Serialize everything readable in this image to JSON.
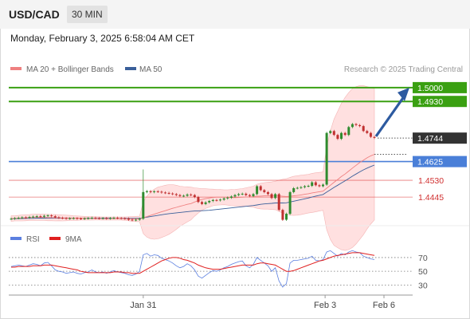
{
  "header": {
    "pair": "USD/CAD",
    "timeframe": "30 MIN"
  },
  "datetime": "Monday, February 3, 2025 6:58:04 AM CET",
  "legend": {
    "ma20": {
      "label": "MA 20 + Bollinger Bands",
      "color": "#ef8080"
    },
    "ma50": {
      "label": "MA 50",
      "color": "#3a5f9a"
    },
    "credit": "Research © 2025 Trading Central"
  },
  "osc_legend": {
    "rsi": {
      "label": "RSI",
      "color": "#5b7fe0"
    },
    "ma9": {
      "label": "9MA",
      "color": "#e02020"
    }
  },
  "chart_data": [
    {
      "type": "candlestick",
      "x_ticks": [
        "Jan 31",
        "Feb 3",
        "Feb 6"
      ],
      "ylim": [
        1.432,
        1.504
      ],
      "price_levels": [
        {
          "label": "1.5000",
          "value": 1.5,
          "kind": "target",
          "color": "#3aa012"
        },
        {
          "label": "1.4930",
          "value": 1.493,
          "kind": "resistance",
          "color": "#3aa012"
        },
        {
          "label": "1.4744",
          "value": 1.4744,
          "kind": "last",
          "color": "#333333"
        },
        {
          "label": "1.4625",
          "value": 1.4625,
          "kind": "pivot",
          "color": "#4a7fd8"
        },
        {
          "label": "1.4530",
          "value": 1.453,
          "kind": "support",
          "color": "#e04040"
        },
        {
          "label": "1.4445",
          "value": 1.4445,
          "kind": "support",
          "color": "#e04040"
        }
      ],
      "closes": [
        1.4335,
        1.4338,
        1.434,
        1.4342,
        1.434,
        1.4344,
        1.4346,
        1.4348,
        1.4345,
        1.435,
        1.4352,
        1.4348,
        1.4342,
        1.434,
        1.4338,
        1.4336,
        1.4337,
        1.4338,
        1.4336,
        1.4335,
        1.4337,
        1.4338,
        1.434,
        1.4338,
        1.4337,
        1.4338,
        1.4336,
        1.4338,
        1.434,
        1.4338,
        1.4337,
        1.4336,
        1.433,
        1.4328,
        1.433,
        1.4335,
        1.447,
        1.4475,
        1.447,
        1.4474,
        1.4472,
        1.4468,
        1.4466,
        1.4463,
        1.446,
        1.4455,
        1.445,
        1.4452,
        1.4458,
        1.4455,
        1.4445,
        1.442,
        1.441,
        1.4418,
        1.4425,
        1.443,
        1.4428,
        1.4432,
        1.4438,
        1.4442,
        1.4448,
        1.4455,
        1.446,
        1.4462,
        1.4455,
        1.445,
        1.446,
        1.45,
        1.448,
        1.447,
        1.446,
        1.444,
        1.446,
        1.438,
        1.433,
        1.436,
        1.447,
        1.449,
        1.4492,
        1.4495,
        1.45,
        1.4502,
        1.452,
        1.4505,
        1.45,
        1.4508,
        1.477,
        1.478,
        1.476,
        1.474,
        1.477,
        1.476,
        1.48,
        1.4815,
        1.481,
        1.4805,
        1.478,
        1.477,
        1.475,
        1.4745
      ],
      "ma20": [
        1.4336,
        1.4337,
        1.4338,
        1.4339,
        1.434,
        1.4341,
        1.4342,
        1.4342,
        1.4342,
        1.4342,
        1.4341,
        1.4341,
        1.434,
        1.434,
        1.4339,
        1.4339,
        1.4339,
        1.4338,
        1.4338,
        1.4338,
        1.4338,
        1.4337,
        1.4337,
        1.4337,
        1.4337,
        1.4336,
        1.4336,
        1.4336,
        1.4336,
        1.4336,
        1.4336,
        1.4335,
        1.4335,
        1.4334,
        1.4334,
        1.4334,
        1.434,
        1.4346,
        1.4352,
        1.4358,
        1.4364,
        1.437,
        1.4376,
        1.4382,
        1.4388,
        1.4393,
        1.4398,
        1.4403,
        1.4408,
        1.4412,
        1.442,
        1.4427,
        1.4433,
        1.4437,
        1.444,
        1.4443,
        1.4444,
        1.4444,
        1.4444,
        1.4443,
        1.4442,
        1.4442,
        1.4443,
        1.4444,
        1.4445,
        1.4446,
        1.4447,
        1.4449,
        1.445,
        1.4451,
        1.4452,
        1.4452,
        1.4453,
        1.4451,
        1.4449,
        1.4448,
        1.4449,
        1.4451,
        1.4453,
        1.4456,
        1.4459,
        1.4462,
        1.4466,
        1.4469,
        1.4472,
        1.4475,
        1.449,
        1.4505,
        1.452,
        1.4534,
        1.4549,
        1.4562,
        1.4577,
        1.4592,
        1.4606,
        1.462,
        1.4632,
        1.4644,
        1.4654,
        1.4662
      ],
      "ma50": [
        1.4335,
        1.4335,
        1.4336,
        1.4336,
        1.4337,
        1.4337,
        1.4337,
        1.4338,
        1.4338,
        1.4338,
        1.4338,
        1.4338,
        1.4338,
        1.4338,
        1.4338,
        1.4338,
        1.4338,
        1.4338,
        1.4338,
        1.4338,
        1.4338,
        1.4338,
        1.4338,
        1.4338,
        1.4338,
        1.4338,
        1.4338,
        1.4338,
        1.4337,
        1.4337,
        1.4337,
        1.4337,
        1.4337,
        1.4337,
        1.4337,
        1.4337,
        1.434,
        1.4343,
        1.4346,
        1.4349,
        1.4352,
        1.4355,
        1.4358,
        1.4361,
        1.4363,
        1.4365,
        1.4367,
        1.4369,
        1.4371,
        1.4373,
        1.4374,
        1.4375,
        1.4376,
        1.4377,
        1.4378,
        1.438,
        1.4382,
        1.4384,
        1.4386,
        1.4388,
        1.439,
        1.4392,
        1.4394,
        1.4396,
        1.4398,
        1.44,
        1.4402,
        1.4405,
        1.4408,
        1.441,
        1.4412,
        1.4413,
        1.4415,
        1.4415,
        1.4415,
        1.4416,
        1.442,
        1.4424,
        1.4428,
        1.4432,
        1.4436,
        1.444,
        1.4445,
        1.445,
        1.4454,
        1.4458,
        1.447,
        1.4482,
        1.4494,
        1.4505,
        1.4516,
        1.4527,
        1.4539,
        1.4551,
        1.4562,
        1.4573,
        1.4583,
        1.4592,
        1.46,
        1.4607
      ],
      "bb_upper": [
        1.435,
        1.435,
        1.4352,
        1.4354,
        1.4355,
        1.4356,
        1.4358,
        1.4358,
        1.4358,
        1.4358,
        1.4357,
        1.4357,
        1.4356,
        1.4355,
        1.4354,
        1.4353,
        1.4352,
        1.435,
        1.4349,
        1.4348,
        1.4347,
        1.4346,
        1.4346,
        1.4345,
        1.4345,
        1.4344,
        1.4344,
        1.4344,
        1.4344,
        1.4344,
        1.4344,
        1.4344,
        1.4345,
        1.4346,
        1.4347,
        1.4348,
        1.442,
        1.445,
        1.447,
        1.4485,
        1.4495,
        1.45,
        1.4505,
        1.4508,
        1.4508,
        1.4505,
        1.45,
        1.4498,
        1.4497,
        1.4495,
        1.4492,
        1.449,
        1.4488,
        1.4487,
        1.4486,
        1.4485,
        1.4484,
        1.4483,
        1.4482,
        1.4482,
        1.4483,
        1.4484,
        1.4486,
        1.4488,
        1.4492,
        1.4496,
        1.45,
        1.451,
        1.4515,
        1.4518,
        1.452,
        1.4522,
        1.4525,
        1.453,
        1.4535,
        1.4538,
        1.4545,
        1.455,
        1.4553,
        1.4556,
        1.4558,
        1.456,
        1.4565,
        1.4568,
        1.457,
        1.4572,
        1.47,
        1.478,
        1.484,
        1.488,
        1.492,
        1.495,
        1.4975,
        1.4995,
        1.5005,
        1.501,
        1.501,
        1.5005,
        1.5,
        1.4995
      ],
      "bb_lower": [
        1.4322,
        1.4324,
        1.4324,
        1.4324,
        1.4325,
        1.4326,
        1.4326,
        1.4326,
        1.4326,
        1.4326,
        1.4325,
        1.4325,
        1.4324,
        1.4325,
        1.4324,
        1.4325,
        1.4326,
        1.4326,
        1.4327,
        1.4328,
        1.4329,
        1.4328,
        1.4328,
        1.4329,
        1.4329,
        1.4328,
        1.4328,
        1.4328,
        1.4328,
        1.4328,
        1.4328,
        1.4326,
        1.4325,
        1.4322,
        1.4321,
        1.432,
        1.426,
        1.4242,
        1.4234,
        1.4231,
        1.4233,
        1.424,
        1.4247,
        1.4256,
        1.4268,
        1.4281,
        1.4296,
        1.4308,
        1.4319,
        1.4329,
        1.4348,
        1.4364,
        1.4378,
        1.4387,
        1.4394,
        1.4401,
        1.4404,
        1.4405,
        1.4406,
        1.4404,
        1.4401,
        1.44,
        1.44,
        1.44,
        1.4398,
        1.4396,
        1.4394,
        1.4388,
        1.4385,
        1.4384,
        1.4384,
        1.4382,
        1.4381,
        1.4372,
        1.4363,
        1.4358,
        1.4353,
        1.4352,
        1.4353,
        1.4356,
        1.436,
        1.4364,
        1.4367,
        1.437,
        1.4374,
        1.4378,
        1.428,
        1.423,
        1.42,
        1.4188,
        1.4178,
        1.4174,
        1.4179,
        1.4189,
        1.4207,
        1.423,
        1.4254,
        1.4283,
        1.4308,
        1.4329
      ]
    },
    {
      "type": "line",
      "title": "RSI",
      "x_ticks": [
        "Jan 31",
        "Feb 3",
        "Feb 6"
      ],
      "y_ticks": [
        "70",
        "50",
        "30"
      ],
      "ylim": [
        20,
        85
      ],
      "series": [
        {
          "name": "RSI",
          "values": [
            57,
            58,
            59,
            58,
            57,
            59,
            61,
            60,
            58,
            62,
            63,
            58,
            52,
            50,
            49,
            47,
            48,
            49,
            47,
            46,
            48,
            49,
            52,
            49,
            48,
            49,
            47,
            49,
            51,
            49,
            48,
            47,
            45,
            44,
            46,
            50,
            74,
            76,
            72,
            74,
            73,
            69,
            67,
            65,
            62,
            58,
            55,
            57,
            61,
            58,
            52,
            43,
            40,
            44,
            48,
            51,
            50,
            52,
            55,
            57,
            60,
            62,
            64,
            65,
            58,
            55,
            60,
            70,
            66,
            62,
            58,
            50,
            55,
            36,
            27,
            32,
            62,
            66,
            66,
            67,
            68,
            69,
            72,
            66,
            65,
            67,
            78,
            80,
            76,
            72,
            76,
            74,
            78,
            80,
            78,
            77,
            72,
            70,
            68,
            67
          ]
        },
        {
          "name": "9MA",
          "values": [
            56,
            56,
            57,
            57,
            57,
            57,
            58,
            58,
            58,
            59,
            59,
            59,
            58,
            57,
            56,
            55,
            54,
            53,
            52,
            50,
            49,
            48,
            48,
            48,
            48,
            48,
            48,
            48,
            49,
            49,
            49,
            48,
            48,
            47,
            47,
            47,
            50,
            53,
            56,
            59,
            62,
            65,
            67,
            69,
            70,
            70,
            69,
            67,
            66,
            64,
            62,
            59,
            57,
            55,
            54,
            53,
            53,
            53,
            54,
            55,
            56,
            57,
            58,
            59,
            59,
            59,
            59,
            61,
            62,
            62,
            61,
            60,
            59,
            56,
            53,
            50,
            50,
            51,
            53,
            55,
            57,
            59,
            61,
            63,
            65,
            66,
            68,
            70,
            72,
            73,
            74,
            75,
            76,
            77,
            77,
            77,
            76,
            75,
            74,
            73
          ]
        }
      ]
    }
  ]
}
